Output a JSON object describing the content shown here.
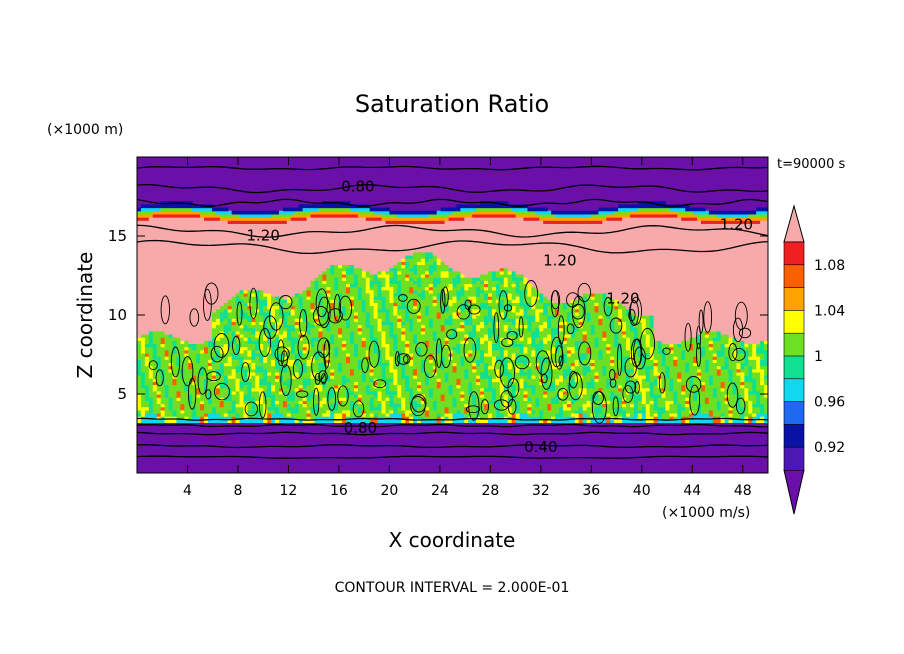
{
  "chart_data": {
    "type": "heatmap",
    "title": "Saturation Ratio",
    "xlabel": "X coordinate",
    "ylabel": "Z coordinate",
    "x_unit": "(×1000 m/s)",
    "y_unit": "(×1000 m)",
    "time_label": "t=90000 s",
    "footer": "CONTOUR INTERVAL = 2.000E-01",
    "xlim": [
      0,
      50
    ],
    "ylim": [
      0,
      20
    ],
    "x_ticks": [
      4,
      8,
      12,
      16,
      20,
      24,
      28,
      32,
      36,
      40,
      44,
      48
    ],
    "y_ticks": [
      5,
      10,
      15
    ],
    "colorbar": {
      "levels": [
        0.92,
        0.96,
        1,
        1.04,
        1.08
      ],
      "level_labels": [
        "0.92",
        "0.96",
        "1",
        "1.04",
        "1.08"
      ],
      "bins": [
        {
          "range": "<0.90",
          "color": "#6a10a8"
        },
        {
          "range": "0.90-0.92",
          "color": "#4b18b4"
        },
        {
          "range": "0.92-0.94",
          "color": "#0a12a6"
        },
        {
          "range": "0.94-0.96",
          "color": "#1f68f0"
        },
        {
          "range": "0.96-0.98",
          "color": "#11d8ee"
        },
        {
          "range": "0.98-1.00",
          "color": "#10e090"
        },
        {
          "range": "1.00-1.02",
          "color": "#6ee023"
        },
        {
          "range": "1.02-1.04",
          "color": "#ffff00"
        },
        {
          "range": "1.04-1.06",
          "color": "#ffa200"
        },
        {
          "range": "1.06-1.08",
          "color": "#f96000"
        },
        {
          "range": "1.08-1.10",
          "color": "#ee2020"
        },
        {
          "range": ">1.10",
          "color": "#f8aaaa"
        }
      ]
    },
    "contour_labels": [
      {
        "text": "0.80",
        "x": 17.5,
        "z": 18.2
      },
      {
        "text": "1.20",
        "x": 10,
        "z": 15.1
      },
      {
        "text": "1.20",
        "x": 47.5,
        "z": 15.8
      },
      {
        "text": "1.20",
        "x": 33.5,
        "z": 13.5
      },
      {
        "text": "1.20",
        "x": 38.5,
        "z": 11.1
      },
      {
        "text": "0.80",
        "x": 17.7,
        "z": 2.9
      },
      {
        "text": "0.40",
        "x": 32,
        "z": 1.7
      }
    ],
    "bands": [
      {
        "name": "lower-dry",
        "z_range": [
          0,
          3.3
        ],
        "value_range": "<0.90"
      },
      {
        "name": "boundary-layer",
        "z_range": [
          3.3,
          10.5
        ],
        "value_range": "0.98-1.02"
      },
      {
        "name": "upper-supersaturated",
        "z_range": [
          10.5,
          16.2
        ],
        "value_range": ">1.10"
      },
      {
        "name": "transition",
        "z_range": [
          16.2,
          16.8
        ],
        "value_range": "0.90-1.10"
      },
      {
        "name": "upper-dry",
        "z_range": [
          16.8,
          20
        ],
        "value_range": "<0.90"
      }
    ]
  }
}
